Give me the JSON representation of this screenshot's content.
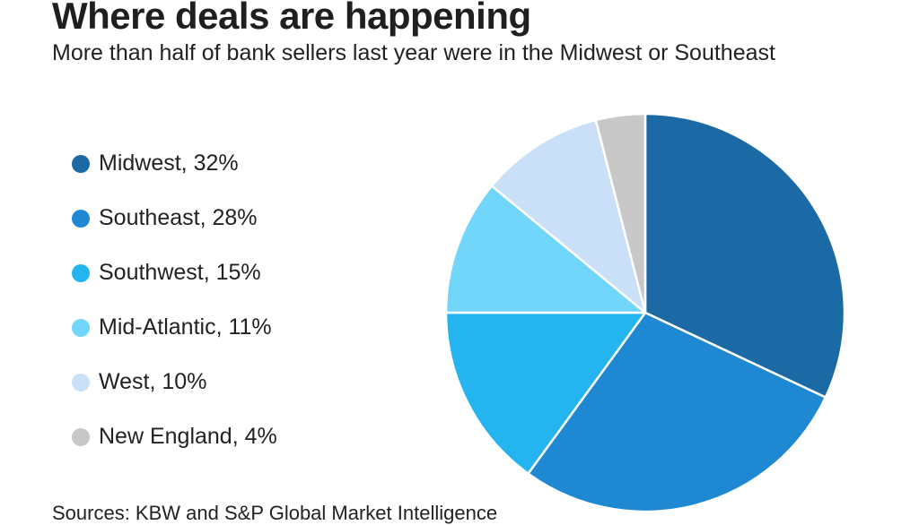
{
  "title": "Where deals are happening",
  "subtitle": "More than half of bank sellers last year were in the Midwest or Southeast",
  "source": "Sources: KBW and S&P Global Market Intelligence",
  "chart_data": {
    "type": "pie",
    "title": "Where deals are happening",
    "subtitle": "More than half of bank sellers last year were in the Midwest or Southeast",
    "slices": [
      {
        "label": "Midwest, 32%",
        "value": 32,
        "color": "#1b6aa5"
      },
      {
        "label": "Southeast, 28%",
        "value": 28,
        "color": "#1f88d2"
      },
      {
        "label": "Southwest, 15%",
        "value": 15,
        "color": "#24b5f0"
      },
      {
        "label": "Mid-Atlantic, 11%",
        "value": 11,
        "color": "#72d6fb"
      },
      {
        "label": "West, 10%",
        "value": 10,
        "color": "#c9e0f8"
      },
      {
        "label": "New England, 4%",
        "value": 4,
        "color": "#c8c8c8"
      }
    ],
    "legend_position": "left",
    "start": "top, clockwise"
  }
}
